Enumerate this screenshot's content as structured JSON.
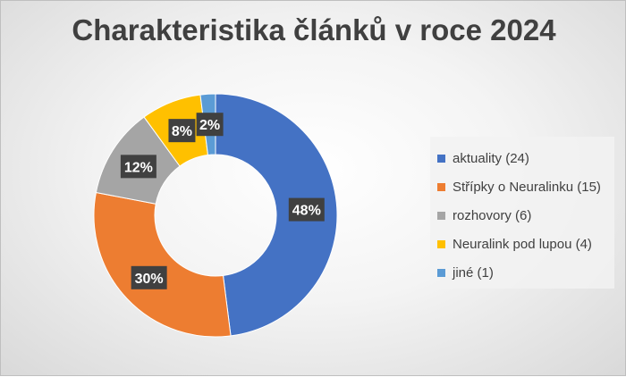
{
  "chart_data": {
    "type": "pie",
    "variant": "doughnut",
    "title": "Charakteristika článků v roce 2024",
    "legend_position": "right",
    "slices": [
      {
        "label": "aktuality (24)",
        "value": 24,
        "percent_label": "48%",
        "color": "#4472C4"
      },
      {
        "label": "Střípky o Neuralinku (15)",
        "value": 15,
        "percent_label": "30%",
        "color": "#ED7D31"
      },
      {
        "label": "rozhovory (6)",
        "value": 6,
        "percent_label": "12%",
        "color": "#A5A5A5"
      },
      {
        "label": "Neuralink pod lupou (4)",
        "value": 4,
        "percent_label": "8%",
        "color": "#FFC000"
      },
      {
        "label": "jiné (1)",
        "value": 1,
        "percent_label": "2%",
        "color": "#5B9BD5"
      }
    ]
  }
}
